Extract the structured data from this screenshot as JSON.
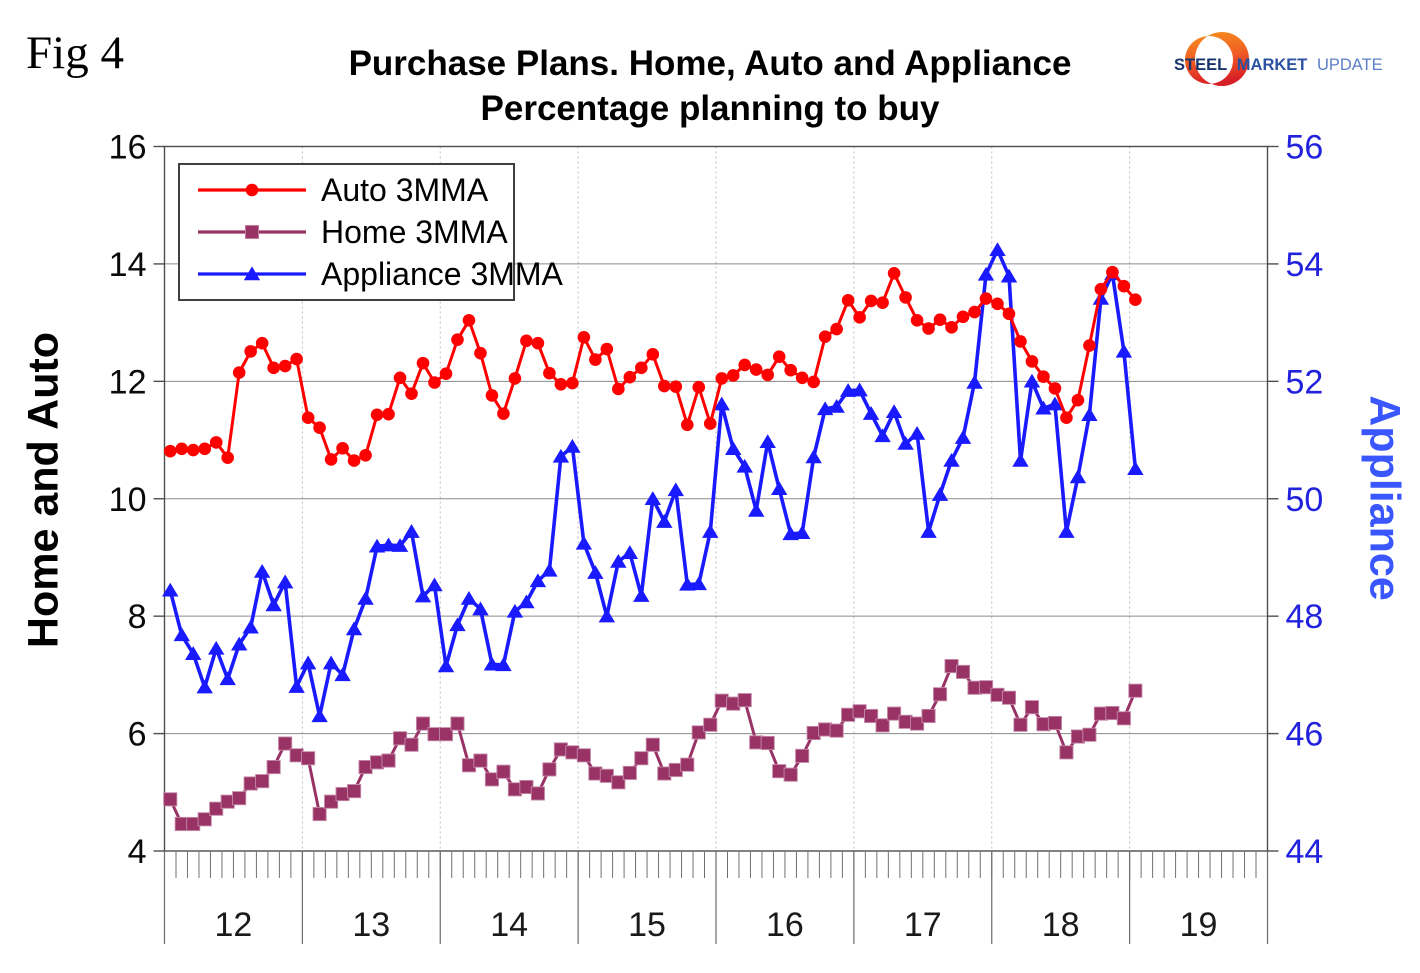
{
  "figure_label": "Fig 4",
  "title": {
    "line1": "Purchase Plans. Home, Auto and Appliance",
    "line2": "Percentage planning to buy"
  },
  "logo": {
    "steel": "STEEL",
    "market": "MARKET",
    "update": "UPDATE"
  },
  "axis_titles": {
    "left": "Home and Auto",
    "right": "Appliance"
  },
  "chart_data": {
    "type": "line",
    "title": "Purchase Plans. Home, Auto and Appliance",
    "subtitle": "Percentage planning to buy",
    "x": {
      "year_labels": [
        "12",
        "13",
        "14",
        "15",
        "16",
        "17",
        "18",
        "19"
      ],
      "points_per_year": 12,
      "start": "Jan 2012",
      "end": "Jan 2019"
    },
    "left_axis": {
      "label": "Home and Auto",
      "min": 4,
      "max": 16,
      "ticks": [
        16,
        14,
        12,
        10,
        8,
        6,
        4
      ],
      "color": "#0a0a0a"
    },
    "right_axis": {
      "label": "Appliance",
      "min": 44,
      "max": 56,
      "ticks": [
        56,
        54,
        52,
        50,
        48,
        46,
        44
      ],
      "color": "#2222dd"
    },
    "grid": {
      "horizontal": true,
      "vertical_year_dotted": true
    },
    "legend": {
      "position": "top-left"
    },
    "series": [
      {
        "name": "Auto 3MMA",
        "axis": "left",
        "color": "#ff0000",
        "marker": "circle",
        "values": [
          10.81,
          10.85,
          10.83,
          10.85,
          10.96,
          10.7,
          12.15,
          12.51,
          12.65,
          12.23,
          12.26,
          12.38,
          11.38,
          11.21,
          10.67,
          10.86,
          10.65,
          10.74,
          11.43,
          11.44,
          12.06,
          11.79,
          12.31,
          11.98,
          12.13,
          12.71,
          13.04,
          12.48,
          11.76,
          11.45,
          12.05,
          12.69,
          12.65,
          12.14,
          11.95,
          11.97,
          12.75,
          12.37,
          12.55,
          11.87,
          12.07,
          12.23,
          12.46,
          11.92,
          11.91,
          11.26,
          11.9,
          11.28,
          12.05,
          12.1,
          12.28,
          12.2,
          12.11,
          12.42,
          12.19,
          12.06,
          11.99,
          12.76,
          12.89,
          13.38,
          13.09,
          13.37,
          13.34,
          13.84,
          13.43,
          13.04,
          12.9,
          13.05,
          12.92,
          13.1,
          13.18,
          13.41,
          13.32,
          13.15,
          12.68,
          12.34,
          12.08,
          11.88,
          11.38,
          11.68,
          12.61,
          13.57,
          13.86,
          13.62,
          13.39
        ]
      },
      {
        "name": "Home 3MMA",
        "axis": "left",
        "color": "#993366",
        "marker": "square",
        "values": [
          4.88,
          4.46,
          4.46,
          4.54,
          4.72,
          4.84,
          4.9,
          5.15,
          5.19,
          5.43,
          5.83,
          5.63,
          5.58,
          4.63,
          4.84,
          4.97,
          5.02,
          5.43,
          5.51,
          5.54,
          5.92,
          5.81,
          6.17,
          5.99,
          5.99,
          6.17,
          5.46,
          5.54,
          5.22,
          5.35,
          5.05,
          5.09,
          4.98,
          5.39,
          5.73,
          5.68,
          5.63,
          5.32,
          5.28,
          5.17,
          5.33,
          5.58,
          5.81,
          5.32,
          5.38,
          5.47,
          6.02,
          6.15,
          6.56,
          6.51,
          6.57,
          5.85,
          5.84,
          5.36,
          5.3,
          5.62,
          6.01,
          6.07,
          6.05,
          6.32,
          6.38,
          6.3,
          6.14,
          6.34,
          6.2,
          6.17,
          6.3,
          6.67,
          7.15,
          7.05,
          6.78,
          6.79,
          6.66,
          6.61,
          6.15,
          6.45,
          6.16,
          6.18,
          5.68,
          5.95,
          5.98,
          6.34,
          6.35,
          6.26,
          6.73
        ]
      },
      {
        "name": "Appliance 3MMA",
        "axis": "right",
        "color": "#1a1aff",
        "marker": "triangle",
        "values": [
          48.44,
          47.68,
          47.36,
          46.79,
          47.45,
          46.93,
          47.52,
          47.81,
          48.76,
          48.19,
          48.58,
          46.8,
          47.2,
          46.3,
          47.2,
          47.0,
          47.78,
          48.3,
          49.19,
          49.21,
          49.2,
          49.44,
          48.34,
          48.53,
          47.15,
          47.85,
          48.3,
          48.12,
          47.18,
          47.17,
          48.08,
          48.24,
          48.6,
          48.78,
          50.72,
          50.89,
          49.24,
          48.74,
          48.0,
          48.93,
          49.08,
          48.35,
          50.0,
          49.61,
          50.15,
          48.54,
          48.55,
          49.44,
          51.61,
          50.85,
          50.55,
          49.8,
          50.97,
          50.17,
          49.4,
          49.42,
          50.71,
          51.53,
          51.57,
          51.84,
          51.85,
          51.45,
          51.07,
          51.48,
          50.94,
          51.11,
          49.44,
          50.07,
          50.65,
          51.04,
          51.98,
          53.82,
          54.24,
          53.79,
          50.65,
          52.0,
          51.54,
          51.61,
          49.44,
          50.37,
          51.43,
          53.41,
          53.83,
          52.51,
          50.51
        ]
      }
    ]
  }
}
